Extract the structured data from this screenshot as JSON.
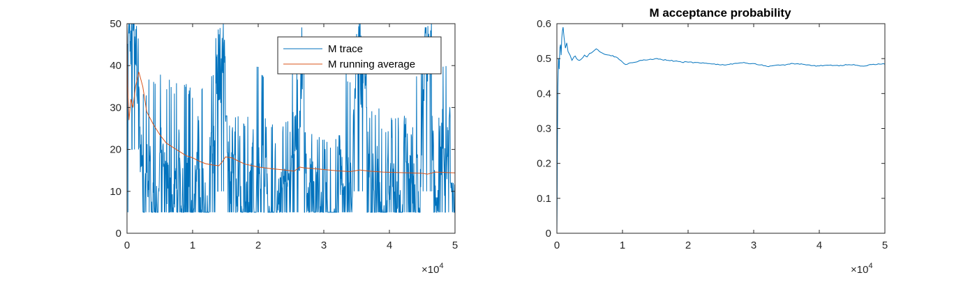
{
  "chart_data": [
    {
      "type": "line",
      "title": "",
      "xlabel": "",
      "ylabel": "",
      "xlim": [
        0,
        50000
      ],
      "ylim": [
        0,
        50
      ],
      "x_ticks": [
        0,
        10000,
        20000,
        30000,
        40000,
        50000
      ],
      "x_tick_labels": [
        "0",
        "1",
        "2",
        "3",
        "4",
        "5"
      ],
      "x_exponent_label": "×10",
      "x_exponent_power": "4",
      "y_ticks": [
        0,
        10,
        20,
        30,
        40,
        50
      ],
      "y_tick_labels": [
        "0",
        "10",
        "20",
        "30",
        "40",
        "50"
      ],
      "grid": false,
      "legend": "top-right",
      "series": [
        {
          "name": "M trace",
          "color": "#0072BD",
          "style": "noisy trace",
          "floor": 5,
          "segments": [
            {
              "x": [
                0,
                600
              ],
              "min": 5,
              "max": 50,
              "level": 38
            },
            {
              "x": [
                600,
                1800
              ],
              "min": 20,
              "max": 50,
              "level": 45
            },
            {
              "x": [
                1800,
                3200
              ],
              "min": 5,
              "max": 35,
              "level": 14
            },
            {
              "x": [
                3200,
                7000
              ],
              "min": 5,
              "max": 38,
              "level": 12
            },
            {
              "x": [
                7000,
                12500
              ],
              "min": 5,
              "max": 36,
              "level": 10
            },
            {
              "x": [
                12500,
                13500
              ],
              "min": 5,
              "max": 40,
              "level": 18
            },
            {
              "x": [
                13500,
                15000
              ],
              "min": 10,
              "max": 50,
              "level": 38
            },
            {
              "x": [
                15000,
                19500
              ],
              "min": 5,
              "max": 28,
              "level": 10
            },
            {
              "x": [
                19500,
                21000
              ],
              "min": 5,
              "max": 40,
              "level": 15
            },
            {
              "x": [
                21000,
                25000
              ],
              "min": 5,
              "max": 28,
              "level": 9
            },
            {
              "x": [
                25000,
                26200
              ],
              "min": 5,
              "max": 40,
              "level": 20
            },
            {
              "x": [
                26200,
                27000
              ],
              "min": 15,
              "max": 50,
              "level": 42
            },
            {
              "x": [
                27000,
                33000
              ],
              "min": 5,
              "max": 24,
              "level": 9
            },
            {
              "x": [
                33000,
                34500
              ],
              "min": 5,
              "max": 40,
              "level": 18
            },
            {
              "x": [
                34500,
                36500
              ],
              "min": 10,
              "max": 50,
              "level": 35
            },
            {
              "x": [
                36500,
                38500
              ],
              "min": 5,
              "max": 30,
              "level": 13
            },
            {
              "x": [
                38500,
                44000
              ],
              "min": 5,
              "max": 28,
              "level": 10
            },
            {
              "x": [
                44000,
                45000
              ],
              "min": 5,
              "max": 40,
              "level": 18
            },
            {
              "x": [
                45000,
                46500
              ],
              "min": 10,
              "max": 50,
              "level": 38
            },
            {
              "x": [
                46500,
                48000
              ],
              "min": 5,
              "max": 28,
              "level": 10
            },
            {
              "x": [
                48000,
                49300
              ],
              "min": 5,
              "max": 40,
              "level": 22
            },
            {
              "x": [
                49300,
                50000
              ],
              "min": 5,
              "max": 12,
              "level": 7
            }
          ]
        },
        {
          "name": "M running average",
          "color": "#D95319",
          "x": [
            0,
            100,
            300,
            600,
            900,
            1300,
            1800,
            2400,
            3000,
            4000,
            5000,
            6000,
            7000,
            8000,
            9000,
            10000,
            11000,
            12000,
            13000,
            14000,
            14500,
            15000,
            16000,
            17000,
            18000,
            20000,
            22000,
            24000,
            25500,
            26300,
            27000,
            28000,
            30000,
            32000,
            34000,
            35500,
            37000,
            39000,
            41000,
            43000,
            45000,
            45800,
            47000,
            48500,
            50000
          ],
          "y": [
            50,
            35,
            27,
            32,
            30,
            35,
            38.5,
            35,
            29,
            26,
            23.5,
            21.5,
            20.5,
            19.5,
            18.5,
            18,
            17.2,
            16.6,
            16.3,
            16.1,
            17,
            18.2,
            18,
            17.2,
            16.5,
            15.8,
            15.4,
            15.1,
            14.8,
            15.8,
            15.6,
            15.5,
            15.2,
            14.9,
            14.7,
            15.1,
            14.8,
            14.6,
            14.5,
            14.4,
            14.3,
            14.1,
            14.6,
            14.5,
            14.4
          ]
        }
      ]
    },
    {
      "type": "line",
      "title": "M acceptance probability",
      "xlabel": "",
      "ylabel": "",
      "xlim": [
        0,
        50000
      ],
      "ylim": [
        0,
        0.6
      ],
      "x_ticks": [
        0,
        10000,
        20000,
        30000,
        40000,
        50000
      ],
      "x_tick_labels": [
        "0",
        "1",
        "2",
        "3",
        "4",
        "5"
      ],
      "x_exponent_label": "×10",
      "x_exponent_power": "4",
      "y_ticks": [
        0,
        0.1,
        0.2,
        0.3,
        0.4,
        0.5,
        0.6
      ],
      "y_tick_labels": [
        "0",
        "0.1",
        "0.2",
        "0.3",
        "0.4",
        "0.5",
        "0.6"
      ],
      "grid": false,
      "series": [
        {
          "color": "#0072BD",
          "x": [
            0,
            30,
            80,
            150,
            250,
            350,
            450,
            550,
            650,
            750,
            850,
            950,
            1100,
            1300,
            1500,
            1700,
            2000,
            2300,
            2600,
            3000,
            3400,
            3800,
            4200,
            4600,
            5000,
            5500,
            6000,
            6500,
            7000,
            8000,
            9000,
            10000,
            10500,
            11000,
            12000,
            13000,
            14000,
            15000,
            16000,
            17000,
            18000,
            19000,
            20000,
            22000,
            24000,
            25000,
            26000,
            27000,
            28000,
            29000,
            30000,
            31000,
            32000,
            33000,
            34000,
            35000,
            36000,
            37000,
            38000,
            39000,
            40000,
            41000,
            42000,
            43000,
            44000,
            45000,
            46000,
            47000,
            48000,
            49000,
            50000
          ],
          "y": [
            0,
            0.08,
            0.28,
            0.42,
            0.5,
            0.47,
            0.53,
            0.54,
            0.51,
            0.56,
            0.58,
            0.59,
            0.56,
            0.53,
            0.545,
            0.52,
            0.51,
            0.495,
            0.505,
            0.5,
            0.495,
            0.5,
            0.51,
            0.505,
            0.515,
            0.52,
            0.528,
            0.52,
            0.515,
            0.51,
            0.505,
            0.49,
            0.483,
            0.487,
            0.49,
            0.495,
            0.497,
            0.5,
            0.497,
            0.495,
            0.493,
            0.49,
            0.49,
            0.487,
            0.485,
            0.482,
            0.483,
            0.486,
            0.488,
            0.487,
            0.486,
            0.482,
            0.478,
            0.48,
            0.481,
            0.483,
            0.486,
            0.484,
            0.482,
            0.48,
            0.479,
            0.481,
            0.48,
            0.479,
            0.483,
            0.482,
            0.48,
            0.479,
            0.483,
            0.485,
            0.484
          ]
        }
      ]
    }
  ]
}
